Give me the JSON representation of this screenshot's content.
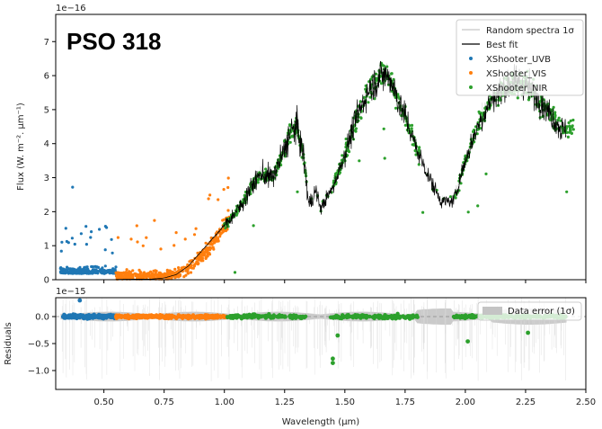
{
  "chart_data": [
    {
      "type": "scatter",
      "title": "PSO 318",
      "xlabel": "",
      "ylabel": "Flux (W. m⁻². µm⁻¹)",
      "offset_text": "1e−16",
      "xlim": [
        0.3,
        2.5
      ],
      "ylim": [
        0,
        7.8
      ],
      "x_ticks": [
        "0.50",
        "0.75",
        "1.00",
        "1.25",
        "1.50",
        "1.75",
        "2.00",
        "2.25",
        "2.50"
      ],
      "y_ticks": [
        "0",
        "1",
        "2",
        "3",
        "4",
        "5",
        "6",
        "7"
      ],
      "grid": false,
      "legend_position": "top-right",
      "series": [
        {
          "name": "Random spectra 1σ",
          "kind": "line",
          "color": "#c8c8c8"
        },
        {
          "name": "Best fit",
          "kind": "line",
          "color": "#000000",
          "x": [
            0.55,
            0.7,
            0.75,
            0.8,
            0.85,
            0.9,
            0.95,
            1.0,
            1.05,
            1.08,
            1.1,
            1.15,
            1.2,
            1.25,
            1.27,
            1.3,
            1.33,
            1.35,
            1.38,
            1.4,
            1.45,
            1.5,
            1.55,
            1.6,
            1.65,
            1.68,
            1.7,
            1.72,
            1.75,
            1.8,
            1.85,
            1.9,
            1.95,
            2.0,
            2.05,
            2.1,
            2.15,
            2.2,
            2.25,
            2.3,
            2.35,
            2.4
          ],
          "y": [
            0.01,
            0.02,
            0.05,
            0.15,
            0.4,
            0.8,
            1.2,
            1.6,
            2.0,
            2.3,
            2.6,
            3.1,
            3.0,
            3.8,
            4.3,
            4.5,
            3.6,
            2.2,
            2.6,
            2.1,
            2.7,
            3.7,
            4.8,
            5.6,
            6.0,
            6.0,
            5.7,
            5.3,
            4.8,
            3.8,
            3.0,
            2.3,
            2.3,
            3.5,
            4.5,
            5.2,
            5.6,
            5.8,
            5.7,
            5.4,
            4.9,
            4.4
          ]
        },
        {
          "name": "XShooter_UVB",
          "kind": "scatter",
          "color": "#1f77b4",
          "x_range": [
            0.32,
            0.55
          ],
          "typical_y": 0.2
        },
        {
          "name": "XShooter_VIS",
          "kind": "scatter",
          "color": "#ff7f0e",
          "x_range": [
            0.55,
            1.02
          ],
          "typical_y": "0.1 rising to 2.1"
        },
        {
          "name": "XShooter_NIR",
          "kind": "scatter",
          "color": "#2ca02c",
          "x_range": [
            1.0,
            2.45
          ],
          "typical_y": "follows best fit, peak 6.2 near 1.68"
        }
      ]
    },
    {
      "type": "scatter",
      "title": "",
      "xlabel": "Wavelength (µm)",
      "ylabel": "Residuals",
      "offset_text": "1e−15",
      "xlim": [
        0.3,
        2.5
      ],
      "ylim": [
        -1.35,
        0.35
      ],
      "x_ticks": [
        "0.50",
        "0.75",
        "1.00",
        "1.25",
        "1.50",
        "1.75",
        "2.00",
        "2.25",
        "2.50"
      ],
      "y_ticks": [
        "0.0",
        "−0.5",
        "−1.0"
      ],
      "grid": false,
      "legend_position": "top-right",
      "series": [
        {
          "name": "Data error (1σ)",
          "kind": "band",
          "color": "#c0c0c0"
        }
      ],
      "outliers": [
        {
          "x": 0.4,
          "y": 0.3
        },
        {
          "x": 1.45,
          "y": -0.78
        },
        {
          "x": 1.45,
          "y": -0.86
        },
        {
          "x": 1.47,
          "y": -0.35
        },
        {
          "x": 2.01,
          "y": -0.46
        },
        {
          "x": 2.26,
          "y": -0.3
        }
      ]
    }
  ],
  "colors": {
    "uvb": "#1f77b4",
    "vis": "#ff7f0e",
    "nir": "#2ca02c",
    "bestfit": "#000000",
    "random": "#d0d0d0",
    "error_band": "#c4c4c4"
  }
}
